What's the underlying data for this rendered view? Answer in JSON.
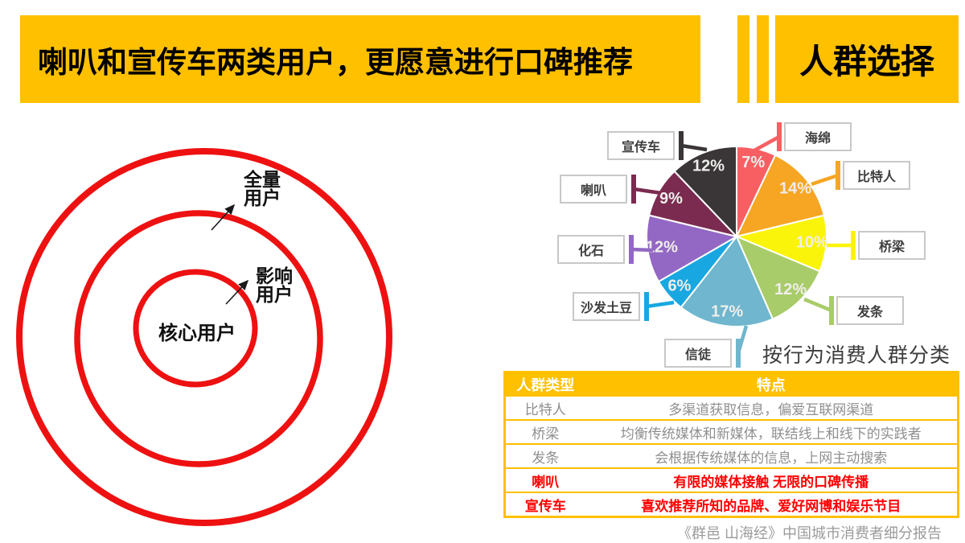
{
  "title": {
    "main": "喇叭和宣传车两类用户，更愿意进行口碑推荐",
    "side": "人群选择"
  },
  "colors": {
    "banner": "#FFC000",
    "circle_stroke": "#EE1111",
    "table_accent": "#FFC000",
    "highlight_red": "#FF0000"
  },
  "venn": {
    "outer_label": "全量\n用户",
    "middle_label": "影响\n用户",
    "inner_label": "核心用户"
  },
  "chart_data": {
    "type": "pie",
    "title": "按行为消费人群分类",
    "unit": "%",
    "start_angle_deg": 0,
    "direction": "clockwise",
    "slices": [
      {
        "label": "海绵",
        "value": 7,
        "color": "#F75F63"
      },
      {
        "label": "比特人",
        "value": 14,
        "color": "#F6A623"
      },
      {
        "label": "桥梁",
        "value": 10,
        "color": "#FAF40A"
      },
      {
        "label": "发条",
        "value": 12,
        "color": "#A8CC69"
      },
      {
        "label": "信徒",
        "value": 17,
        "color": "#6FB6CE"
      },
      {
        "label": "沙发土豆",
        "value": 6,
        "color": "#19A7E1"
      },
      {
        "label": "化石",
        "value": 12,
        "color": "#9368C4"
      },
      {
        "label": "喇叭",
        "value": 9,
        "color": "#7B2B50"
      },
      {
        "label": "宣传车",
        "value": 12,
        "color": "#3A3537"
      }
    ]
  },
  "table": {
    "headers": [
      "人群类型",
      "特点"
    ],
    "rows": [
      {
        "type": "比特人",
        "desc": "多渠道获取信息，偏爱互联网渠道",
        "highlight": false
      },
      {
        "type": "桥梁",
        "desc": "均衡传统媒体和新媒体，联结线上和线下的实践者",
        "highlight": false
      },
      {
        "type": "发条",
        "desc": "会根据传统媒体的信息，上网主动搜索",
        "highlight": false
      },
      {
        "type": "喇叭",
        "desc": "有限的媒体接触 无限的口碑传播",
        "highlight": true
      },
      {
        "type": "宣传车",
        "desc": "喜欢推荐所知的品牌、爱好网博和娱乐节目",
        "highlight": true
      }
    ]
  },
  "caption": "《群邑 山海经》中国城市消费者细分报告"
}
